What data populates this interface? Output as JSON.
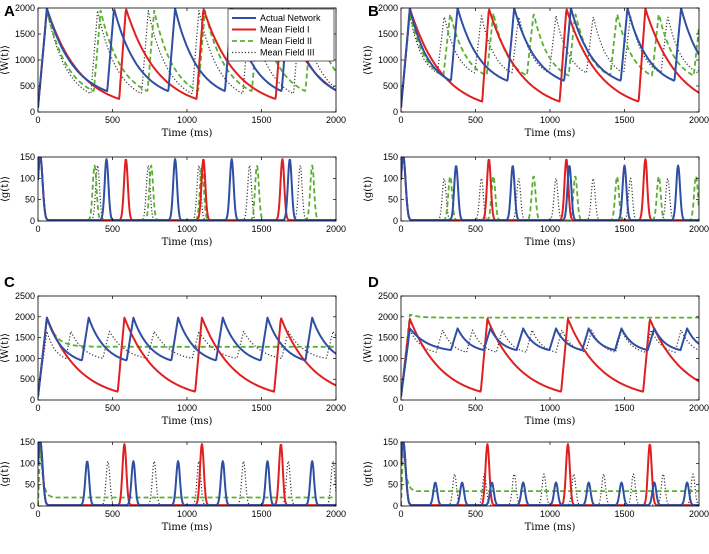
{
  "figure": {
    "panel_labels": [
      "A",
      "B",
      "C",
      "D"
    ]
  },
  "legend": {
    "entries": [
      {
        "name": "Actual Network",
        "color": "#2F4FA5",
        "style": "solid"
      },
      {
        "name": "Mean Field I",
        "color": "#E02020",
        "style": "solid"
      },
      {
        "name": "Mean Field II",
        "color": "#5AB130",
        "style": "dashed"
      },
      {
        "name": "Mean Field III",
        "color": "#333333",
        "style": "dotted"
      }
    ]
  },
  "chart_data": [
    {
      "panel": "A",
      "type": "line",
      "variable": "W",
      "xlabel": "Time (ms)",
      "ylabel": "⟨W(t)⟩",
      "xlim": [
        0,
        2000
      ],
      "ylim": [
        0,
        2000
      ],
      "xticks": [
        0,
        500,
        1000,
        1500,
        2000
      ],
      "yticks": [
        0,
        500,
        1000,
        1500,
        2000
      ],
      "series": [
        {
          "name": "Actual Network",
          "peaks": [
            60,
            510,
            920,
            1300,
            1680
          ],
          "peak": 1990,
          "trough": 400
        },
        {
          "name": "Mean Field I",
          "peaks": [
            60,
            590,
            1110,
            1640
          ],
          "peak": 1990,
          "trough": 250
        },
        {
          "name": "Mean Field II",
          "peaks": [
            60,
            420,
            780,
            1120,
            1480,
            1840
          ],
          "peak": 1950,
          "trough": 400
        },
        {
          "name": "Mean Field III",
          "peaks": [
            60,
            400,
            740,
            1080,
            1420,
            1760
          ],
          "peak": 1950,
          "trough": 350
        }
      ]
    },
    {
      "panel": "A",
      "type": "line",
      "variable": "g",
      "xlabel": "Time (ms)",
      "ylabel": "⟨g(t)⟩",
      "xlim": [
        0,
        2000
      ],
      "ylim": [
        0,
        150
      ],
      "xticks": [
        0,
        500,
        1000,
        1500,
        2000
      ],
      "yticks": [
        0,
        50,
        100,
        150
      ],
      "baseline": 2,
      "series": [
        {
          "name": "Actual Network",
          "peaks": [
            460,
            920,
            1300,
            1690
          ],
          "peak": 145
        },
        {
          "name": "Mean Field I",
          "peaks": [
            590,
            1110,
            1640
          ],
          "peak": 145
        },
        {
          "name": "Mean Field II",
          "peaks": [
            380,
            760,
            1100,
            1470,
            1840
          ],
          "peak": 130
        },
        {
          "name": "Mean Field III",
          "peaks": [
            400,
            740,
            1080,
            1420,
            1760
          ],
          "peak": 130
        }
      ]
    },
    {
      "panel": "B",
      "type": "line",
      "variable": "W",
      "xlabel": "Time (ms)",
      "ylabel": "⟨W(t)⟩",
      "xlim": [
        0,
        2000
      ],
      "ylim": [
        0,
        2000
      ],
      "xticks": [
        0,
        500,
        1000,
        1500,
        2000
      ],
      "yticks": [
        0,
        500,
        1000,
        1500,
        2000
      ],
      "series": [
        {
          "name": "Actual Network",
          "peaks": [
            60,
            380,
            760,
            1140,
            1520,
            1880
          ],
          "peak": 2000,
          "trough": 600
        },
        {
          "name": "Mean Field I",
          "peaks": [
            60,
            590,
            1110,
            1640
          ],
          "peak": 1990,
          "trough": 200
        },
        {
          "name": "Mean Field II",
          "peaks": [
            60,
            330,
            620,
            890,
            1170,
            1450,
            1730
          ],
          "peak": 1900,
          "trough": 700
        },
        {
          "name": "Mean Field III",
          "peaks": [
            60,
            290,
            540,
            790,
            1040,
            1290,
            1540,
            1790
          ],
          "peak": 1850,
          "trough": 750
        }
      ]
    },
    {
      "panel": "B",
      "type": "line",
      "variable": "g",
      "xlabel": "Time (ms)",
      "ylabel": "⟨g(t)⟩",
      "xlim": [
        0,
        2000
      ],
      "ylim": [
        0,
        150
      ],
      "xticks": [
        0,
        500,
        1000,
        1500,
        2000
      ],
      "yticks": [
        0,
        50,
        100,
        150
      ],
      "baseline": 2,
      "series": [
        {
          "name": "Actual Network",
          "peaks": [
            370,
            750,
            1130,
            1500,
            1860
          ],
          "peak": 130
        },
        {
          "name": "Mean Field I",
          "peaks": [
            590,
            1110,
            1640
          ],
          "peak": 145
        },
        {
          "name": "Mean Field II",
          "peaks": [
            330,
            620,
            890,
            1170,
            1450,
            1730,
            1980
          ],
          "peak": 105
        },
        {
          "name": "Mean Field III",
          "peaks": [
            290,
            540,
            790,
            1040,
            1290,
            1540,
            1790
          ],
          "peak": 100
        }
      ]
    },
    {
      "panel": "C",
      "type": "line",
      "variable": "W",
      "xlabel": "Time (ms)",
      "ylabel": "⟨W(t)⟩",
      "xlim": [
        0,
        2000
      ],
      "ylim": [
        0,
        2500
      ],
      "xticks": [
        0,
        500,
        1000,
        1500,
        2000
      ],
      "yticks": [
        0,
        500,
        1000,
        1500,
        2000,
        2500
      ],
      "series": [
        {
          "name": "Actual Network",
          "peaks": [
            60,
            340,
            640,
            940,
            1240,
            1540,
            1840
          ],
          "peak": 1980,
          "trough": 950
        },
        {
          "name": "Mean Field I",
          "peaks": [
            60,
            580,
            1100,
            1630
          ],
          "peak": 1980,
          "trough": 200
        },
        {
          "name": "Mean Field II",
          "flat": 1280,
          "peak": 1980
        },
        {
          "name": "Mean Field III",
          "peaks": [
            60,
            220,
            480,
            780,
            1080,
            1380,
            1680,
            1980
          ],
          "peak": 1650,
          "trough": 1000
        }
      ]
    },
    {
      "panel": "C",
      "type": "line",
      "variable": "g",
      "xlabel": "Time (ms)",
      "ylabel": "⟨g(t)⟩",
      "xlim": [
        0,
        2000
      ],
      "ylim": [
        0,
        150
      ],
      "xticks": [
        0,
        500,
        1000,
        1500,
        2000
      ],
      "yticks": [
        0,
        50,
        100,
        150
      ],
      "baseline": 2,
      "series": [
        {
          "name": "Actual Network",
          "peaks": [
            330,
            640,
            940,
            1240,
            1540,
            1840
          ],
          "peak": 105
        },
        {
          "name": "Mean Field I",
          "peaks": [
            580,
            1100,
            1630
          ],
          "peak": 145
        },
        {
          "name": "Mean Field II",
          "flat": 20,
          "peak": 155
        },
        {
          "name": "Mean Field III",
          "peaks": [
            470,
            780,
            1080,
            1380,
            1680,
            1980
          ],
          "peak": 105
        }
      ]
    },
    {
      "panel": "D",
      "type": "line",
      "variable": "W",
      "xlabel": "Time (ms)",
      "ylabel": "⟨W(t)⟩",
      "xlim": [
        0,
        2000
      ],
      "ylim": [
        0,
        2500
      ],
      "xticks": [
        0,
        500,
        1000,
        1500,
        2000
      ],
      "yticks": [
        0,
        500,
        1000,
        1500,
        2000,
        2500
      ],
      "series": [
        {
          "name": "Actual Network",
          "peaks": [
            60,
            380,
            600,
            820,
            1040,
            1260,
            1480,
            1700,
            1920
          ],
          "peak": 1720,
          "trough": 1200
        },
        {
          "name": "Mean Field I",
          "peaks": [
            60,
            580,
            1120,
            1670
          ],
          "peak": 1950,
          "trough": 200
        },
        {
          "name": "Mean Field II",
          "flat": 1980,
          "peak": 2050
        },
        {
          "name": "Mean Field III",
          "peaks": [
            60,
            280,
            480,
            680,
            880,
            1080,
            1280,
            1480,
            1680,
            1880
          ],
          "peak": 1680,
          "trough": 1150
        }
      ]
    },
    {
      "panel": "D",
      "type": "line",
      "variable": "g",
      "xlabel": "Time (ms)",
      "ylabel": "⟨g(t)⟩",
      "xlim": [
        0,
        2000
      ],
      "ylim": [
        0,
        150
      ],
      "xticks": [
        0,
        500,
        1000,
        1500,
        2000
      ],
      "yticks": [
        0,
        50,
        100,
        150
      ],
      "baseline": 2,
      "series": [
        {
          "name": "Actual Network",
          "peaks": [
            230,
            410,
            610,
            820,
            1040,
            1260,
            1480,
            1700,
            1920
          ],
          "peak": 55
        },
        {
          "name": "Mean Field I",
          "peaks": [
            580,
            1120,
            1670
          ],
          "peak": 145
        },
        {
          "name": "Mean Field II",
          "flat": 35,
          "peak": 155
        },
        {
          "name": "Mean Field III",
          "peaks": [
            360,
            560,
            760,
            960,
            1160,
            1360,
            1560,
            1760,
            1960
          ],
          "peak": 75
        }
      ]
    }
  ]
}
